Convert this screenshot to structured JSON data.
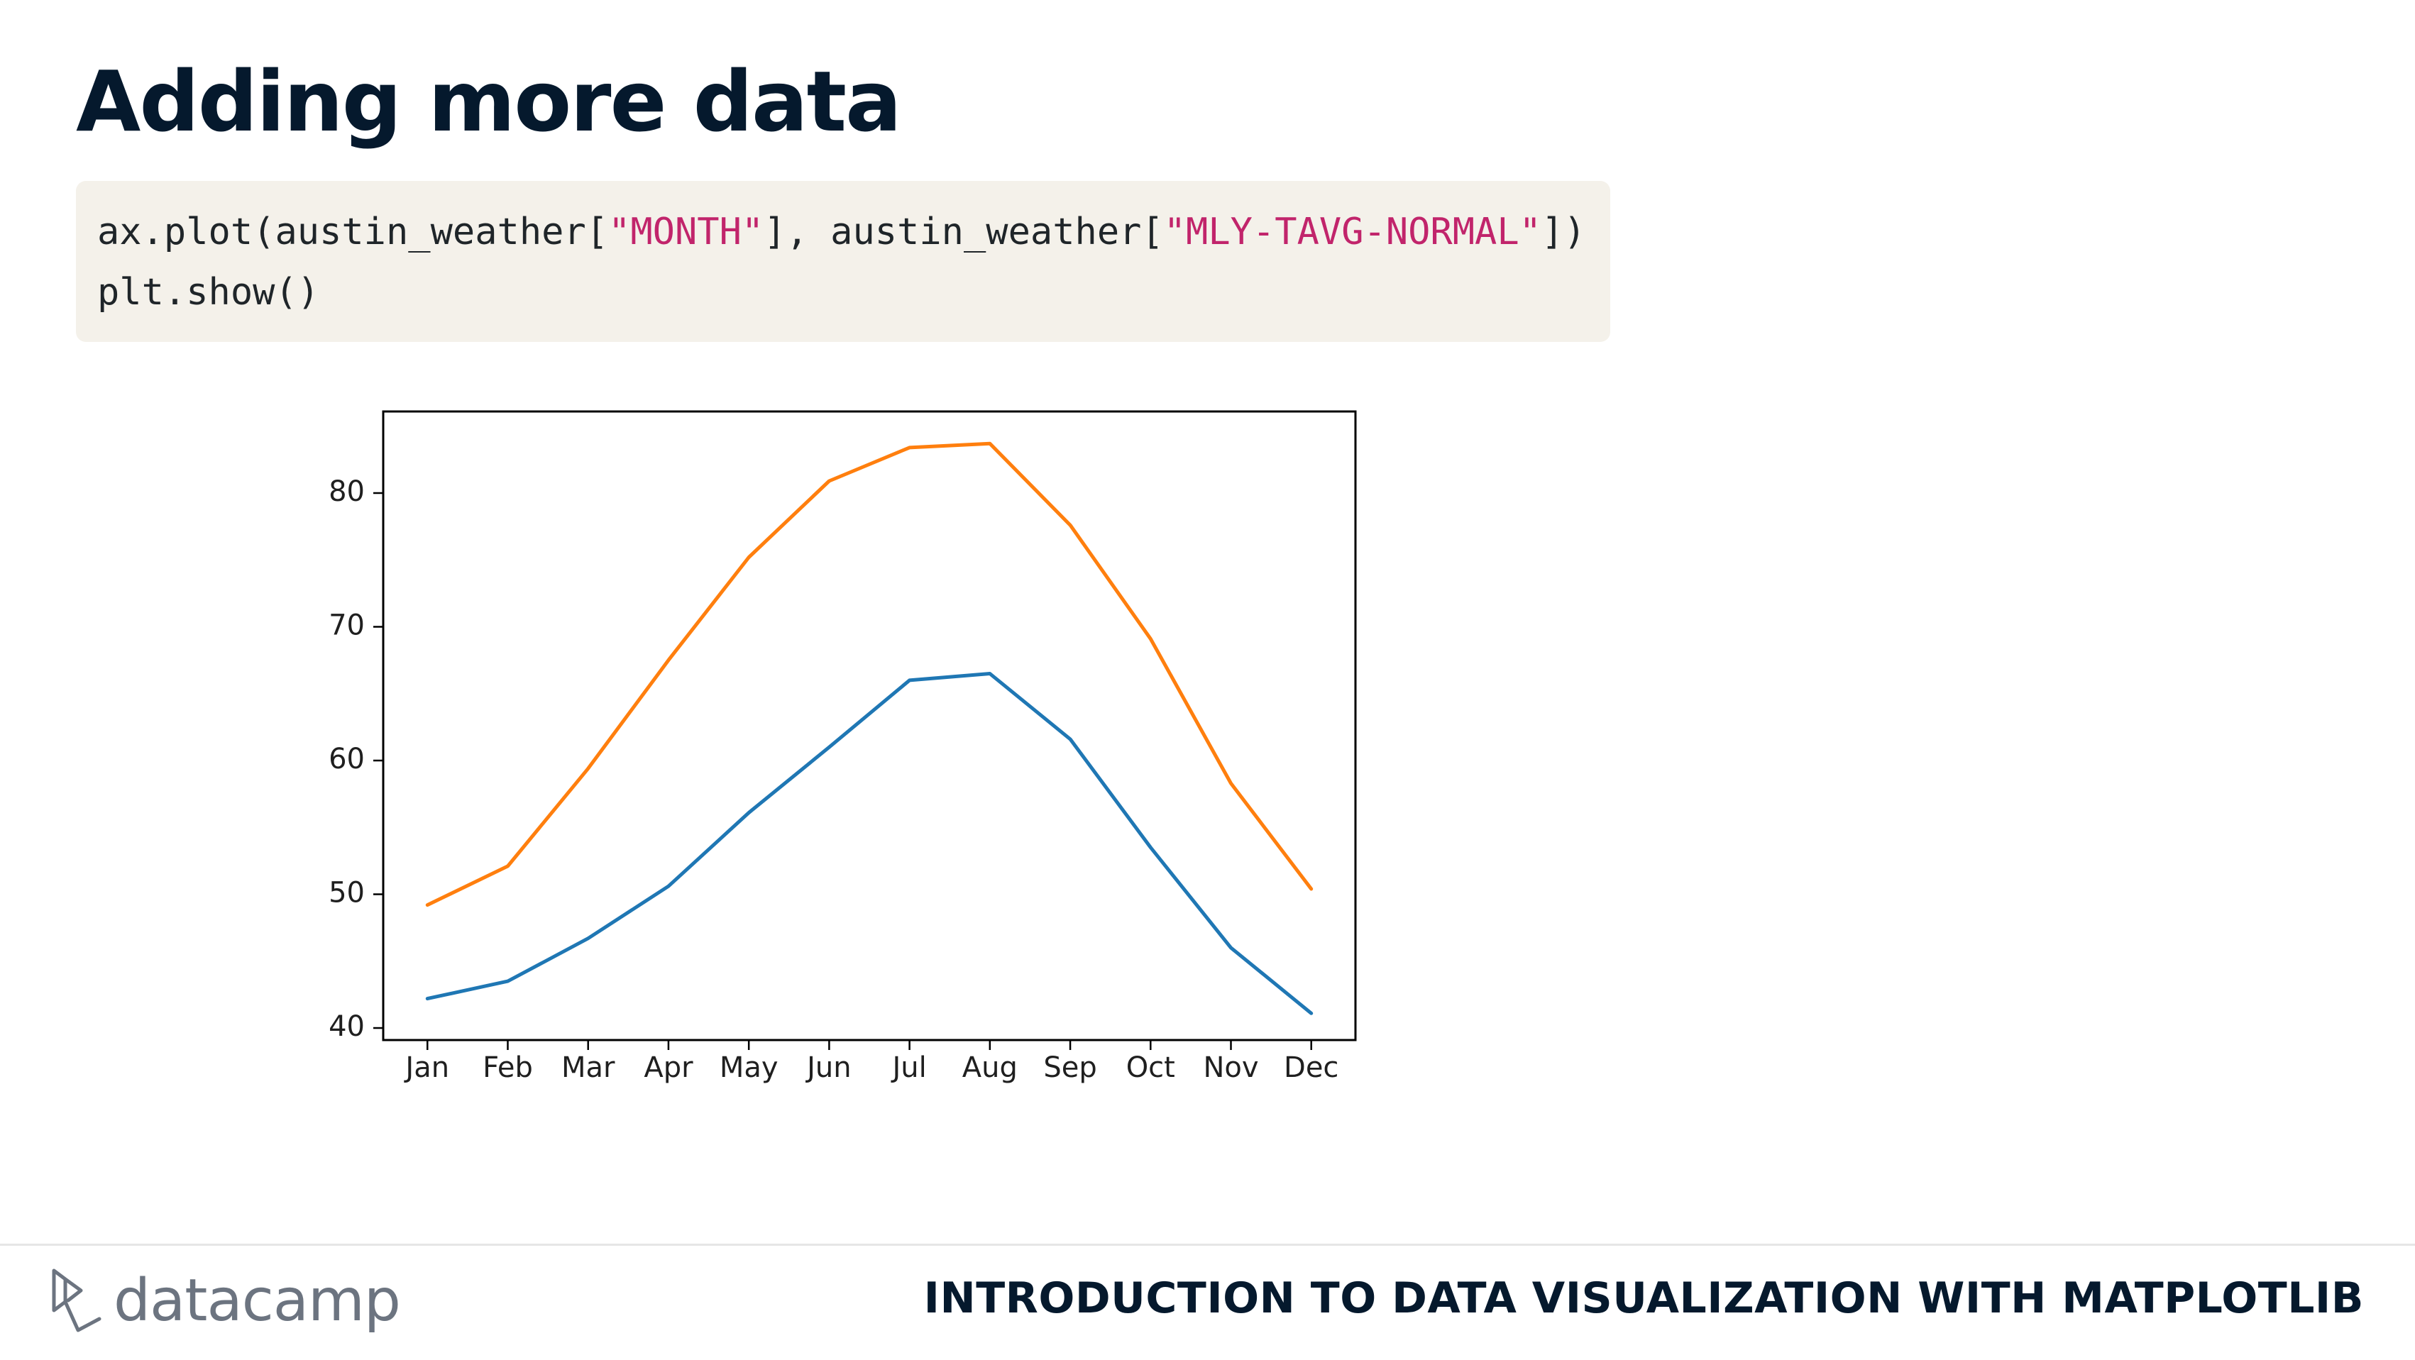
{
  "slide": {
    "title": "Adding more data",
    "footer_course": "INTRODUCTION TO DATA VISUALIZATION WITH MATPLOTLIB",
    "brand": "datacamp"
  },
  "code": {
    "line1": {
      "p1": "ax.plot(austin_weather[",
      "s1": "\"MONTH\"",
      "p2": "], austin_weather[",
      "s2": "\"MLY-TAVG-NORMAL\"",
      "p3": "])"
    },
    "line2": "plt.show()",
    "colors": {
      "text": "#1f2529",
      "string": "#c1246b",
      "background": "#f4f1ea"
    }
  },
  "chart_data": {
    "type": "line",
    "categories": [
      "Jan",
      "Feb",
      "Mar",
      "Apr",
      "May",
      "Jun",
      "Jul",
      "Aug",
      "Sep",
      "Oct",
      "Nov",
      "Dec"
    ],
    "series": [
      {
        "color": "#1f77b4",
        "values": [
          42.2,
          43.5,
          46.7,
          50.6,
          56.1,
          61.0,
          66.0,
          66.5,
          61.6,
          53.5,
          46.0,
          41.1
        ]
      },
      {
        "color": "#ff7f0e",
        "values": [
          49.2,
          52.1,
          59.4,
          67.5,
          75.2,
          80.9,
          83.4,
          83.7,
          77.6,
          69.1,
          58.3,
          50.4
        ]
      }
    ],
    "yticks": [
      40,
      50,
      60,
      70,
      80
    ],
    "ylim": [
      39.1,
      86.1
    ],
    "title": "",
    "xlabel": "",
    "ylabel": "",
    "grid": false,
    "legend": "none"
  }
}
